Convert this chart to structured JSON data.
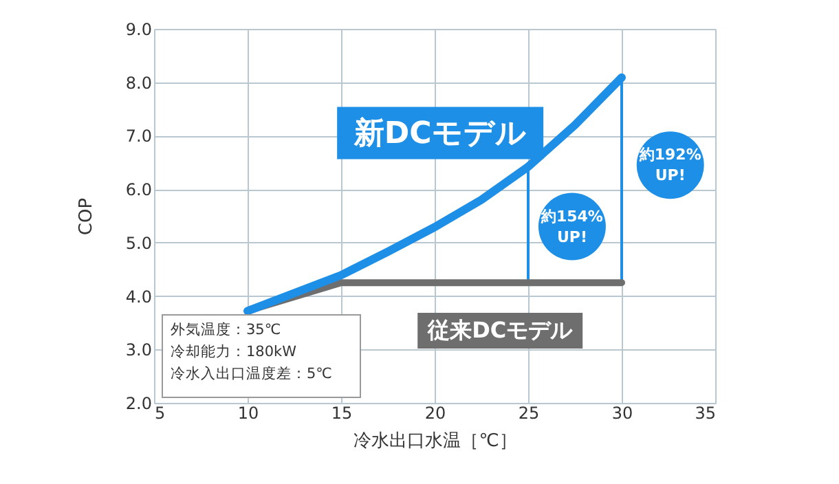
{
  "chart_data": {
    "type": "line",
    "xlabel": "冷水出口水温［℃］",
    "ylabel": "COP",
    "xlim": [
      5,
      35
    ],
    "ylim": [
      2.0,
      9.0
    ],
    "xticks": [
      5,
      10,
      15,
      20,
      25,
      30,
      35
    ],
    "yticks": [
      {
        "value": 2,
        "label": "2.0"
      },
      {
        "value": 3,
        "label": "3.0"
      },
      {
        "value": 4,
        "label": "4.0"
      },
      {
        "value": 5,
        "label": "5.0"
      },
      {
        "value": 6,
        "label": "6.0"
      },
      {
        "value": 7,
        "label": "7.0"
      },
      {
        "value": 8,
        "label": "8.0"
      },
      {
        "value": 9,
        "label": "9.0"
      }
    ],
    "grid": true,
    "marker": "none",
    "line_style": "solid",
    "series": [
      {
        "name": "新DCモデル",
        "color": "#1e8fe6",
        "x": [
          10,
          15,
          17.5,
          20,
          22.5,
          25,
          27.5,
          30
        ],
        "values": [
          3.72,
          4.39,
          4.83,
          5.29,
          5.8,
          6.42,
          7.2,
          8.09
        ]
      },
      {
        "name": "従来DCモデル",
        "color": "#6e6e6e",
        "x": [
          10,
          15,
          30
        ],
        "values": [
          3.72,
          4.25,
          4.25
        ]
      },
      {
        "color": "#1e8fe6",
        "x": [
          25,
          25
        ],
        "values": [
          4.25,
          6.42
        ]
      },
      {
        "color": "#1e8fe6",
        "x": [
          30,
          30
        ],
        "values": [
          4.25,
          8.09
        ]
      }
    ],
    "annotations": [
      "約154% UP!",
      "約192% UP!",
      "外気温度：35℃",
      "冷却能力：180kW",
      "冷水入出口温度差：5℃"
    ]
  }
}
